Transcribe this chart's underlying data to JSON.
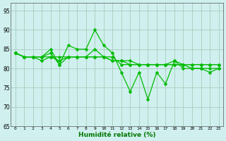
{
  "x": [
    0,
    1,
    2,
    3,
    4,
    5,
    6,
    7,
    8,
    9,
    10,
    11,
    12,
    13,
    14,
    15,
    16,
    17,
    18,
    19,
    20,
    21,
    22,
    23
  ],
  "line1": [
    84,
    83,
    83,
    83,
    85,
    81,
    86,
    85,
    85,
    90,
    86,
    84,
    79,
    74,
    79,
    72,
    79,
    76,
    82,
    80,
    80,
    80,
    79,
    80
  ],
  "line2": [
    84,
    83,
    83,
    82,
    83,
    82,
    83,
    83,
    83,
    83,
    83,
    82,
    82,
    81,
    81,
    81,
    81,
    81,
    81,
    81,
    81,
    81,
    81,
    81
  ],
  "line3": [
    84,
    83,
    83,
    83,
    84,
    81,
    83,
    83,
    83,
    85,
    83,
    83,
    81,
    81,
    81,
    81,
    81,
    81,
    82,
    81,
    81,
    81,
    81,
    81
  ],
  "line4": [
    84,
    83,
    83,
    83,
    83,
    83,
    83,
    83,
    83,
    83,
    83,
    82,
    82,
    82,
    81,
    81,
    81,
    81,
    81,
    81,
    80,
    80,
    80,
    80
  ],
  "line_color": "#00bb00",
  "bg_color": "#cff0ee",
  "grid_color": "#aaccbb",
  "xlabel": "Humidité relative (%)",
  "ylim": [
    65,
    97
  ],
  "xlim": [
    -0.5,
    23.5
  ],
  "yticks": [
    65,
    70,
    75,
    80,
    85,
    90,
    95
  ],
  "xticks": [
    0,
    1,
    2,
    3,
    4,
    5,
    6,
    7,
    8,
    9,
    10,
    11,
    12,
    13,
    14,
    15,
    16,
    17,
    18,
    19,
    20,
    21,
    22,
    23
  ],
  "markersize": 2.5,
  "linewidth": 0.9
}
